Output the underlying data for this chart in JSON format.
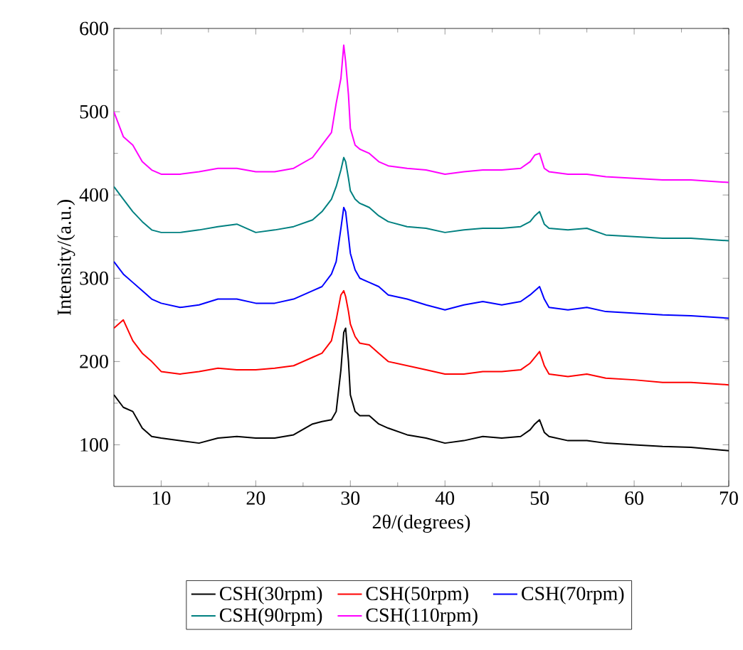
{
  "chart_data": {
    "type": "line",
    "xlabel": "2θ/(degrees)",
    "ylabel": "Intensity/(a.u.)",
    "x": [
      5,
      6,
      7,
      8,
      9,
      10,
      12,
      14,
      16,
      18,
      20,
      22,
      24,
      26,
      27,
      28,
      28.5,
      29,
      29.3,
      29.5,
      29.8,
      30,
      30.5,
      31,
      32,
      33,
      34,
      36,
      38,
      40,
      42,
      44,
      46,
      48,
      49,
      49.5,
      50,
      50.5,
      51,
      53,
      55,
      57,
      60,
      63,
      66,
      70
    ],
    "xlim": [
      5,
      70
    ],
    "xticks": [
      10,
      20,
      30,
      40,
      50,
      60,
      70
    ],
    "ylim": [
      50,
      600
    ],
    "yticks": [
      100,
      200,
      300,
      400,
      500,
      600
    ],
    "legend": "bottom",
    "series": [
      {
        "name": "CSH(30rpm)",
        "color": "#000000",
        "values": [
          160,
          145,
          140,
          120,
          110,
          108,
          105,
          102,
          108,
          110,
          108,
          108,
          112,
          125,
          128,
          130,
          140,
          190,
          235,
          240,
          200,
          160,
          140,
          135,
          135,
          125,
          120,
          112,
          108,
          102,
          105,
          110,
          108,
          110,
          118,
          125,
          130,
          115,
          110,
          105,
          105,
          102,
          100,
          98,
          97,
          93
        ]
      },
      {
        "name": "CSH(50rpm)",
        "color": "#ff0000",
        "values": [
          240,
          250,
          225,
          210,
          200,
          188,
          185,
          188,
          192,
          190,
          190,
          192,
          195,
          205,
          210,
          225,
          250,
          280,
          285,
          278,
          260,
          245,
          230,
          222,
          220,
          210,
          200,
          195,
          190,
          185,
          185,
          188,
          188,
          190,
          198,
          205,
          212,
          195,
          185,
          182,
          185,
          180,
          178,
          175,
          175,
          172
        ]
      },
      {
        "name": "CSH(70rpm)",
        "color": "#0000ff",
        "values": [
          320,
          305,
          295,
          285,
          275,
          270,
          265,
          268,
          275,
          275,
          270,
          270,
          275,
          285,
          290,
          305,
          320,
          360,
          385,
          380,
          350,
          330,
          310,
          300,
          295,
          290,
          280,
          275,
          268,
          262,
          268,
          272,
          268,
          272,
          280,
          285,
          290,
          275,
          265,
          262,
          265,
          260,
          258,
          256,
          255,
          252
        ]
      },
      {
        "name": "CSH(90rpm)",
        "color": "#008080",
        "values": [
          410,
          395,
          380,
          368,
          358,
          355,
          355,
          358,
          362,
          365,
          355,
          358,
          362,
          370,
          380,
          395,
          410,
          430,
          445,
          440,
          420,
          405,
          395,
          390,
          385,
          375,
          368,
          362,
          360,
          355,
          358,
          360,
          360,
          362,
          368,
          375,
          380,
          365,
          360,
          358,
          360,
          352,
          350,
          348,
          348,
          345
        ]
      },
      {
        "name": "CSH(110rpm)",
        "color": "#ff00ff",
        "values": [
          500,
          470,
          460,
          440,
          430,
          425,
          425,
          428,
          432,
          432,
          428,
          428,
          432,
          445,
          460,
          475,
          510,
          540,
          580,
          560,
          520,
          480,
          460,
          455,
          450,
          440,
          435,
          432,
          430,
          425,
          428,
          430,
          430,
          432,
          440,
          448,
          450,
          432,
          428,
          425,
          425,
          422,
          420,
          418,
          418,
          415
        ]
      }
    ]
  }
}
